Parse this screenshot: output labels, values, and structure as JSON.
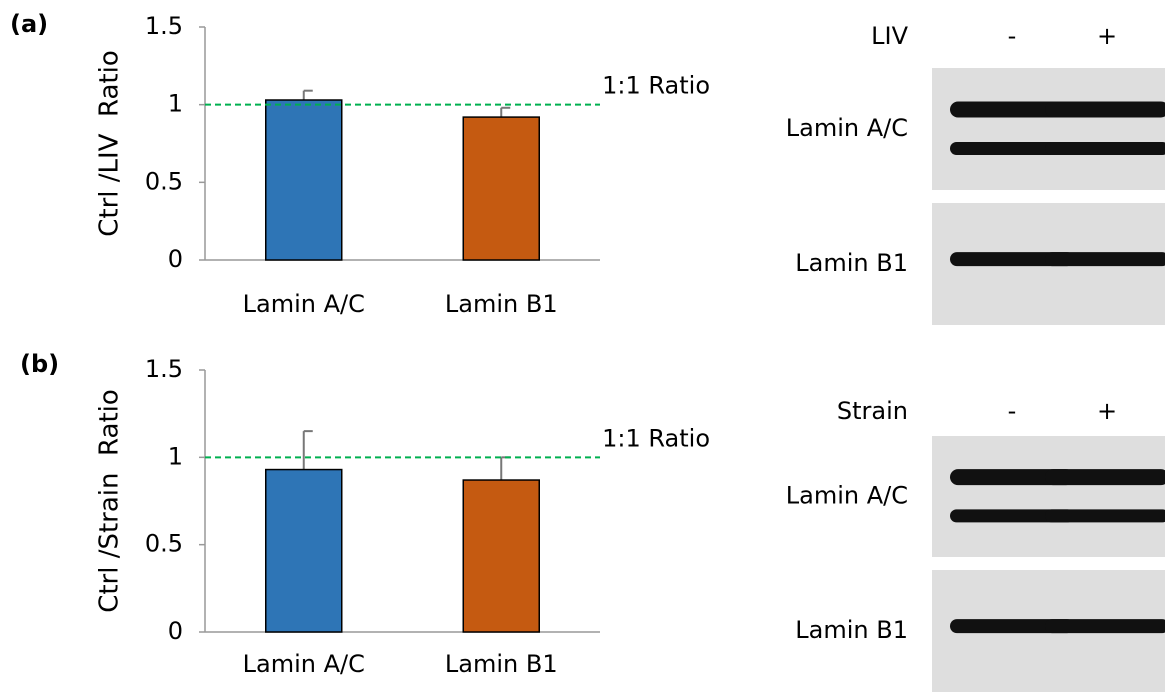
{
  "chart_data": [
    {
      "type": "bar",
      "panel_label": "(a)",
      "ylabel": "Ctrl /LIV  Ratio",
      "categories": [
        "Lamin A/C",
        "Lamin B1"
      ],
      "values": [
        1.03,
        0.92
      ],
      "errors": [
        0.06,
        0.06
      ],
      "colors": [
        "#2e75b6",
        "#c55a11"
      ],
      "ylim": [
        0,
        1.5
      ],
      "yticks": [
        0,
        0.5,
        1,
        1.5
      ],
      "reference_line": {
        "value": 1,
        "label": "1:1 Ratio",
        "color": "#00b050"
      },
      "blot": {
        "condition": "LIV",
        "lanes": [
          "-",
          "+"
        ],
        "bands": [
          "Lamin A/C",
          "Lamin B1"
        ]
      }
    },
    {
      "type": "bar",
      "panel_label": "(b)",
      "ylabel": "Ctrl /Strain  Ratio",
      "categories": [
        "Lamin A/C",
        "Lamin B1"
      ],
      "values": [
        0.93,
        0.87
      ],
      "errors": [
        0.22,
        0.13
      ],
      "colors": [
        "#2e75b6",
        "#c55a11"
      ],
      "ylim": [
        0,
        1.5
      ],
      "yticks": [
        0,
        0.5,
        1,
        1.5
      ],
      "reference_line": {
        "value": 1,
        "label": "1:1 Ratio",
        "color": "#00b050"
      },
      "blot": {
        "condition": "Strain",
        "lanes": [
          "-",
          "+"
        ],
        "bands": [
          "Lamin A/C",
          "Lamin B1"
        ]
      }
    }
  ]
}
